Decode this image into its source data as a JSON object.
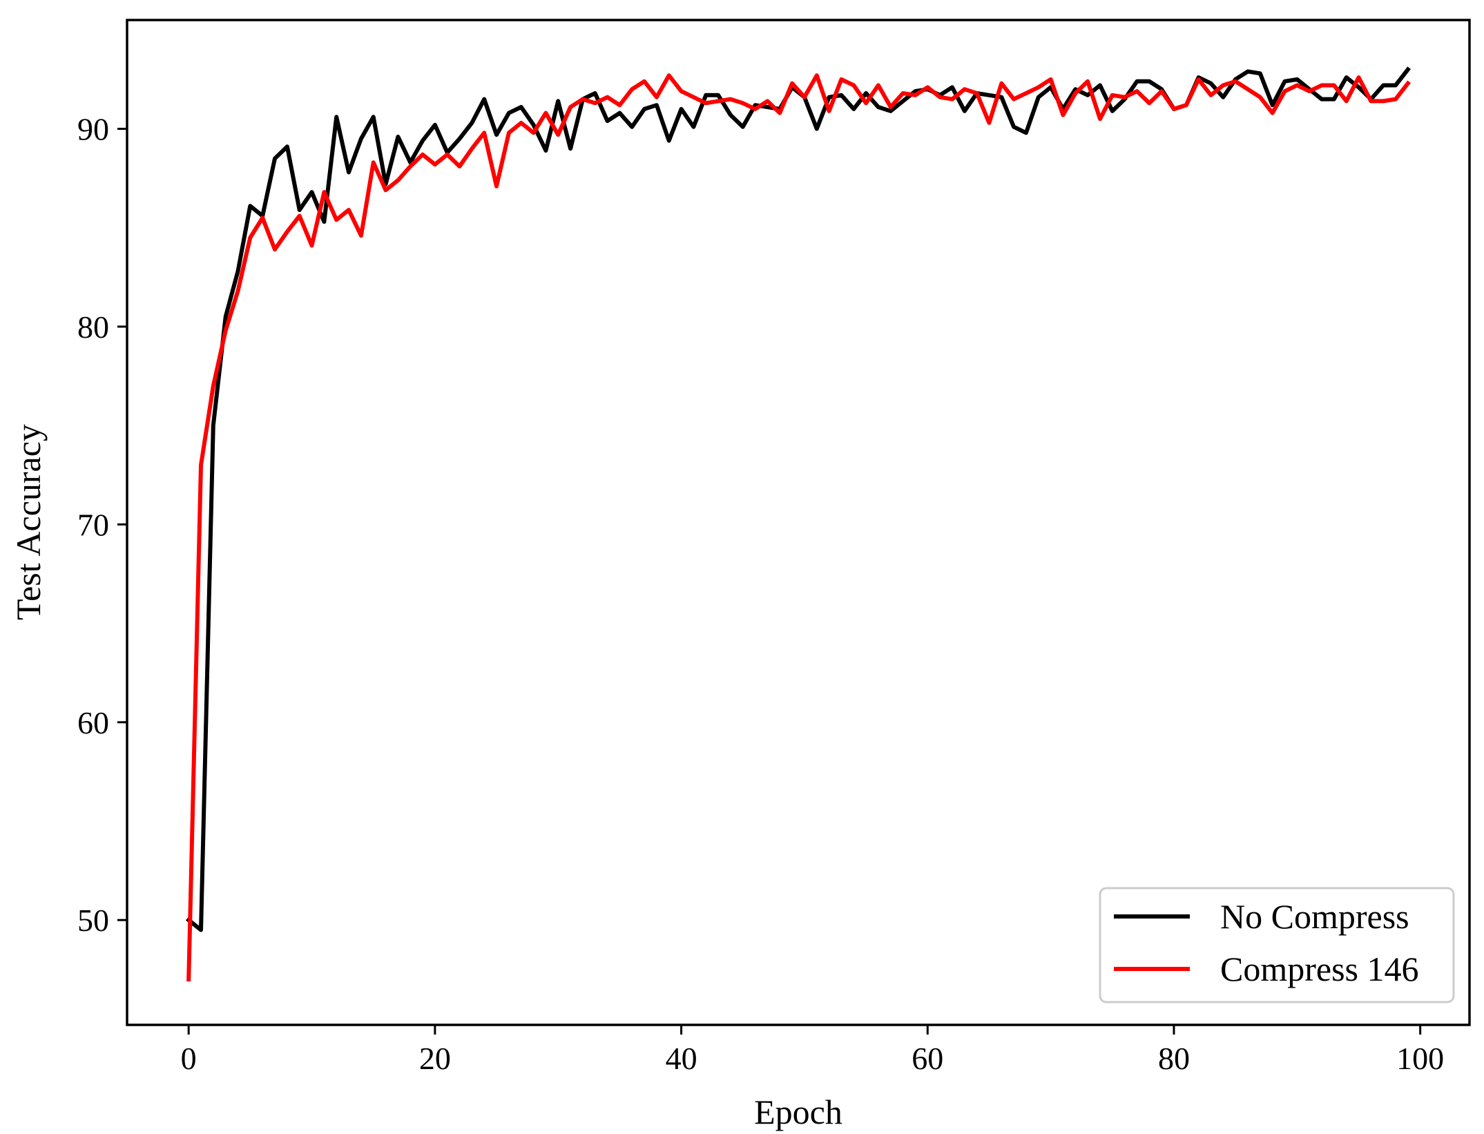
{
  "chart_data": {
    "type": "line",
    "title": "",
    "xlabel": "Epoch",
    "ylabel": "Test Accuracy",
    "xlim": [
      -5,
      104
    ],
    "ylim": [
      44.7,
      95.5
    ],
    "xticks": [
      0,
      20,
      40,
      60,
      80,
      100
    ],
    "yticks": [
      50,
      60,
      70,
      80,
      90
    ],
    "xtick_labels": [
      "0",
      "20",
      "40",
      "60",
      "80",
      "100"
    ],
    "ytick_labels": [
      "50",
      "60",
      "70",
      "80",
      "90"
    ],
    "grid": false,
    "legend_position": "lower-right",
    "x": [
      0,
      1,
      2,
      3,
      4,
      5,
      6,
      7,
      8,
      9,
      10,
      11,
      12,
      13,
      14,
      15,
      16,
      17,
      18,
      19,
      20,
      21,
      22,
      23,
      24,
      25,
      26,
      27,
      28,
      29,
      30,
      31,
      32,
      33,
      34,
      35,
      36,
      37,
      38,
      39,
      40,
      41,
      42,
      43,
      44,
      45,
      46,
      47,
      48,
      49,
      50,
      51,
      52,
      53,
      54,
      55,
      56,
      57,
      58,
      59,
      60,
      61,
      62,
      63,
      64,
      65,
      66,
      67,
      68,
      69,
      70,
      71,
      72,
      73,
      74,
      75,
      76,
      77,
      78,
      79,
      80,
      81,
      82,
      83,
      84,
      85,
      86,
      87,
      88,
      89,
      90,
      91,
      92,
      93,
      94,
      95,
      96,
      97,
      98,
      99
    ],
    "series": [
      {
        "name": "No Compress",
        "color": "#000000",
        "values": [
          50.0,
          49.5,
          75.0,
          80.5,
          82.8,
          86.1,
          85.6,
          88.5,
          89.1,
          85.9,
          86.8,
          85.3,
          90.6,
          87.8,
          89.5,
          90.6,
          87.2,
          89.6,
          88.3,
          89.4,
          90.2,
          88.8,
          89.5,
          90.3,
          91.5,
          89.7,
          90.8,
          91.1,
          90.2,
          88.9,
          91.4,
          89.0,
          91.5,
          91.8,
          90.4,
          90.8,
          90.1,
          91.0,
          91.2,
          89.4,
          91.0,
          90.1,
          91.7,
          91.7,
          90.7,
          90.1,
          91.2,
          91.1,
          91.0,
          92.1,
          91.6,
          90.0,
          91.6,
          91.7,
          91.0,
          91.8,
          91.1,
          90.9,
          91.4,
          91.9,
          92.0,
          91.7,
          92.1,
          90.9,
          91.8,
          91.7,
          91.6,
          90.1,
          89.8,
          91.6,
          92.1,
          91.0,
          92.0,
          91.7,
          92.2,
          90.9,
          91.5,
          92.4,
          92.4,
          92.0,
          91.0,
          91.2,
          92.6,
          92.3,
          91.6,
          92.5,
          92.9,
          92.8,
          91.2,
          92.4,
          92.5,
          92.0,
          91.5,
          91.5,
          92.6,
          92.1,
          91.5,
          92.2,
          92.2,
          93.0
        ]
      },
      {
        "name": "Compress 146",
        "color": "#ff0000",
        "values": [
          47.0,
          73.0,
          77.0,
          79.8,
          81.8,
          84.5,
          85.5,
          83.9,
          84.8,
          85.6,
          84.1,
          86.8,
          85.4,
          85.9,
          84.6,
          88.3,
          86.9,
          87.4,
          88.1,
          88.7,
          88.2,
          88.7,
          88.1,
          89.0,
          89.8,
          87.1,
          89.8,
          90.3,
          89.8,
          90.8,
          89.7,
          91.1,
          91.5,
          91.3,
          91.6,
          91.2,
          92.0,
          92.4,
          91.6,
          92.7,
          91.9,
          91.6,
          91.3,
          91.4,
          91.5,
          91.3,
          91.0,
          91.4,
          90.8,
          92.3,
          91.6,
          92.7,
          90.9,
          92.5,
          92.2,
          91.3,
          92.2,
          91.1,
          91.8,
          91.7,
          92.1,
          91.6,
          91.5,
          92.0,
          91.8,
          90.3,
          92.3,
          91.5,
          91.8,
          92.1,
          92.5,
          90.7,
          91.8,
          92.4,
          90.5,
          91.7,
          91.6,
          91.9,
          91.3,
          91.9,
          91.0,
          91.2,
          92.5,
          91.7,
          92.2,
          92.4,
          92.0,
          91.6,
          90.8,
          91.9,
          92.2,
          91.9,
          92.2,
          92.2,
          91.4,
          92.6,
          91.4,
          91.4,
          91.5,
          92.3
        ]
      }
    ]
  }
}
